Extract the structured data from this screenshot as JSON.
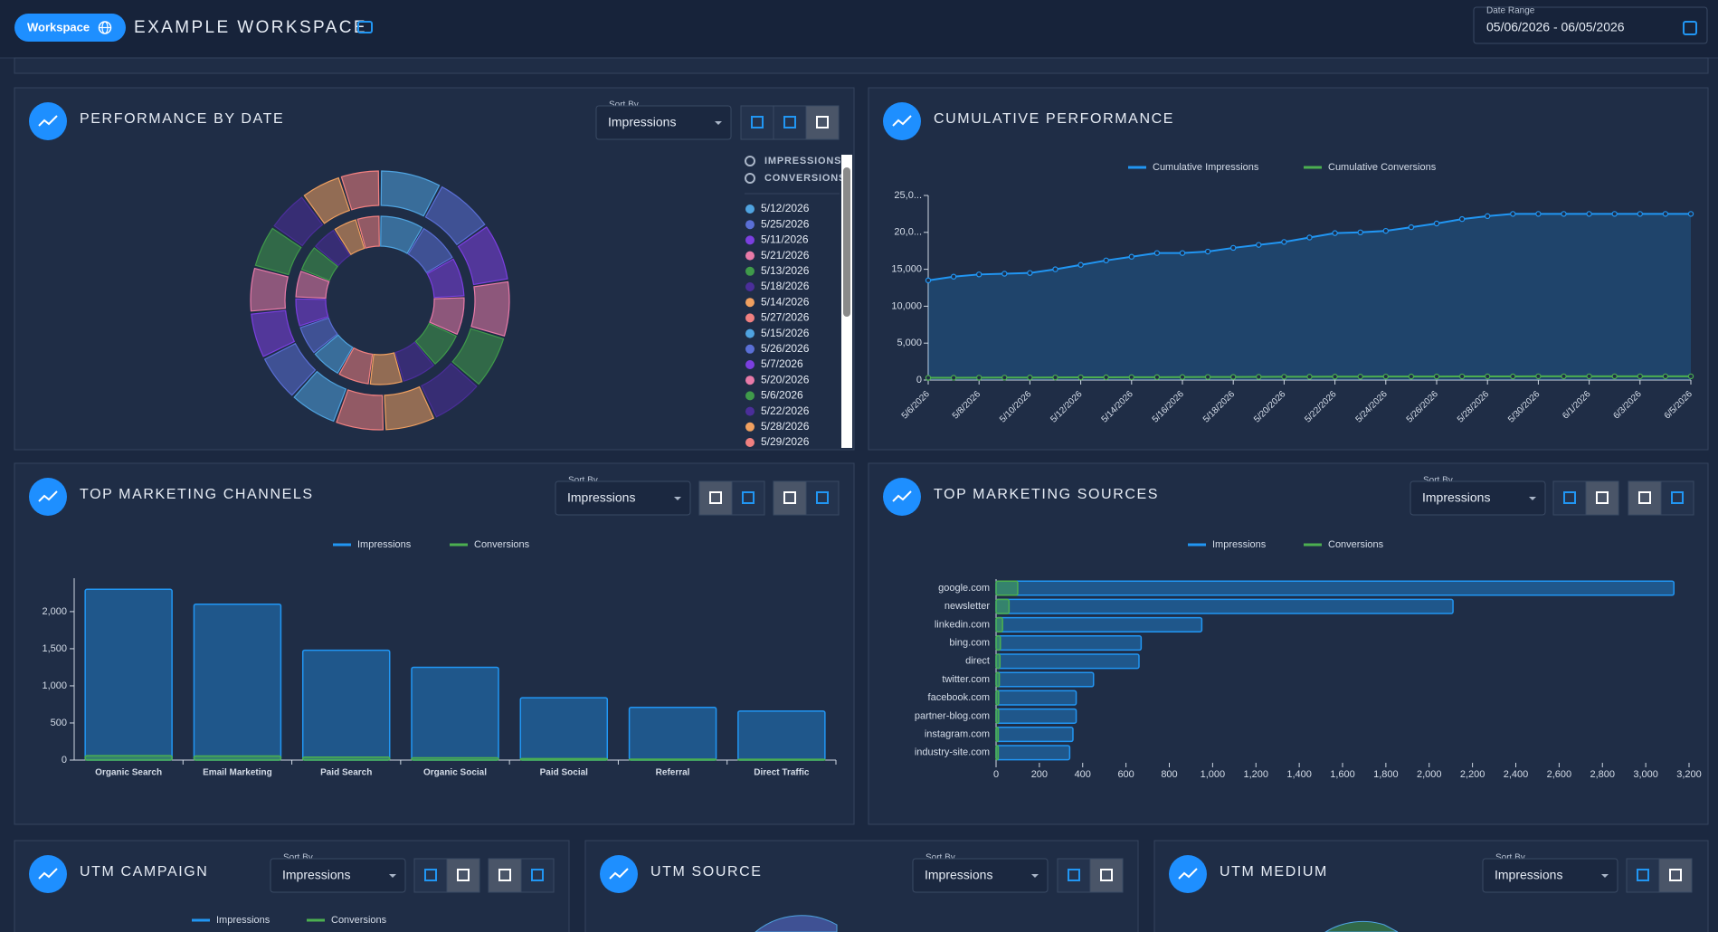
{
  "header": {
    "badge": "Workspace",
    "workspace_name": "EXAMPLE WORKSPACE",
    "date_range_label": "Date Range",
    "date_range_value": "05/06/2026 - 06/05/2026"
  },
  "chart_data": [
    {
      "type": "pie",
      "title": "PERFORMANCE BY DATE",
      "sort_label": "Sort By",
      "sort_value": "Impressions",
      "categories": [
        "5/12/2026",
        "5/25/2026",
        "5/11/2026",
        "5/21/2026",
        "5/13/2026",
        "5/18/2026",
        "5/14/2026",
        "5/27/2026",
        "5/15/2026",
        "5/26/2026",
        "5/7/2026",
        "5/20/2026",
        "5/6/2026",
        "5/22/2026",
        "5/28/2026",
        "5/29/2026"
      ],
      "colors": [
        "#4fa3e0",
        "#5a6fd6",
        "#7b3fe0",
        "#e87aa8",
        "#3f9a4a",
        "#4b2e9a",
        "#f0a060",
        "#f08080",
        "#4fa3e0",
        "#5a6fd6",
        "#7b3fe0",
        "#e87aa8",
        "#3f9a4a",
        "#4b2e9a",
        "#f0a060",
        "#f08080"
      ],
      "series": [
        {
          "name": "IMPRESSIONS",
          "values": [
            1150,
            1100,
            1080,
            1050,
            1000,
            980,
            950,
            920,
            900,
            880,
            860,
            840,
            800,
            780,
            760,
            740
          ]
        },
        {
          "name": "CONVERSIONS",
          "values": [
            40,
            38,
            36,
            35,
            33,
            32,
            30,
            29,
            28,
            27,
            26,
            25,
            24,
            23,
            22,
            21
          ]
        }
      ]
    },
    {
      "type": "line",
      "title": "CUMULATIVE PERFORMANCE",
      "categories": [
        "5/6/2026",
        null,
        "5/8/2026",
        null,
        "5/10/2026",
        null,
        "5/12/2026",
        null,
        "5/14/2026",
        null,
        "5/16/2026",
        null,
        "5/18/2026",
        null,
        "5/20/2026",
        null,
        "5/22/2026",
        null,
        "5/24/2026",
        null,
        "5/26/2026",
        null,
        "5/28/2026",
        null,
        "5/30/2026",
        null,
        "6/1/2026",
        null,
        "6/3/2026",
        null,
        "6/5/2026"
      ],
      "series": [
        {
          "name": "Cumulative Impressions",
          "color": "#2196f3",
          "values": [
            13500,
            14000,
            14300,
            14400,
            14500,
            15000,
            15600,
            16200,
            16700,
            17200,
            17200,
            17400,
            17900,
            18300,
            18700,
            19300,
            19900,
            20000,
            20200,
            20700,
            21200,
            21800,
            22200,
            22500,
            22500,
            22500,
            22500,
            22500,
            22500,
            22500,
            22500
          ]
        },
        {
          "name": "Cumulative Conversions",
          "color": "#4caf50",
          "values": [
            300,
            310,
            320,
            330,
            340,
            350,
            360,
            370,
            380,
            390,
            400,
            410,
            420,
            430,
            440,
            450,
            460,
            465,
            470,
            475,
            480,
            485,
            490,
            495,
            500,
            500,
            500,
            500,
            500,
            500,
            500
          ]
        }
      ],
      "ylim": [
        0,
        25000
      ],
      "yticks": [
        0,
        {
          "value": 5000,
          "label": "5,000"
        },
        {
          "value": 10000,
          "label": "10,000"
        },
        {
          "value": 15000,
          "label": "15,000"
        },
        {
          "value": 20000,
          "label": "20,0..."
        },
        {
          "value": 25000,
          "label": "25,0..."
        }
      ]
    },
    {
      "type": "bar",
      "title": "TOP MARKETING CHANNELS",
      "sort_label": "Sort By",
      "sort_value": "Impressions",
      "categories": [
        "Organic Search",
        "Email Marketing",
        "Paid Search",
        "Organic Social",
        "Paid Social",
        "Referral",
        "Direct Traffic"
      ],
      "series": [
        {
          "name": "Impressions",
          "color": "#2196f3",
          "values": [
            2300,
            2100,
            1480,
            1250,
            840,
            710,
            660
          ]
        },
        {
          "name": "Conversions",
          "color": "#4caf50",
          "values": [
            60,
            55,
            40,
            30,
            20,
            12,
            10
          ]
        }
      ],
      "ylim": [
        0,
        2450
      ],
      "yticks": [
        0,
        500,
        {
          "value": 1000,
          "label": "1,000"
        },
        {
          "value": 1500,
          "label": "1,500"
        },
        {
          "value": 2000,
          "label": "2,000"
        }
      ]
    },
    {
      "type": "barh",
      "title": "TOP MARKETING SOURCES",
      "sort_label": "Sort By",
      "sort_value": "Impressions",
      "categories": [
        "google.com",
        "newsletter",
        "linkedin.com",
        "bing.com",
        "direct",
        "twitter.com",
        "facebook.com",
        "partner-blog.com",
        "instagram.com",
        "industry-site.com"
      ],
      "series": [
        {
          "name": "Impressions",
          "color": "#2196f3",
          "values": [
            3130,
            2110,
            950,
            670,
            660,
            450,
            370,
            370,
            355,
            340
          ]
        },
        {
          "name": "Conversions",
          "color": "#4caf50",
          "values": [
            100,
            60,
            30,
            20,
            18,
            15,
            12,
            12,
            10,
            10
          ]
        }
      ],
      "xlim": [
        0,
        3200
      ],
      "xticks": [
        0,
        200,
        400,
        600,
        800,
        {
          "value": 1000,
          "label": "1,000"
        },
        {
          "value": 1200,
          "label": "1,200"
        },
        {
          "value": 1400,
          "label": "1,400"
        },
        {
          "value": 1600,
          "label": "1,600"
        },
        {
          "value": 1800,
          "label": "1,800"
        },
        {
          "value": 2000,
          "label": "2,000"
        },
        {
          "value": 2200,
          "label": "2,200"
        },
        {
          "value": 2400,
          "label": "2,400"
        },
        {
          "value": 2600,
          "label": "2,600"
        },
        {
          "value": 2800,
          "label": "2,800"
        },
        {
          "value": 3000,
          "label": "3,000"
        },
        {
          "value": 3200,
          "label": "3,200"
        }
      ]
    }
  ],
  "utm_panels": [
    {
      "title": "UTM CAMPAIGN",
      "sort_label": "Sort By",
      "sort_value": "Impressions",
      "legend": [
        {
          "name": "Impressions",
          "color": "#2196f3"
        },
        {
          "name": "Conversions",
          "color": "#4caf50"
        }
      ]
    },
    {
      "title": "UTM SOURCE",
      "sort_label": "Sort By",
      "sort_value": "Impressions"
    },
    {
      "title": "UTM MEDIUM",
      "sort_label": "Sort By",
      "sort_value": "Impressions"
    }
  ]
}
